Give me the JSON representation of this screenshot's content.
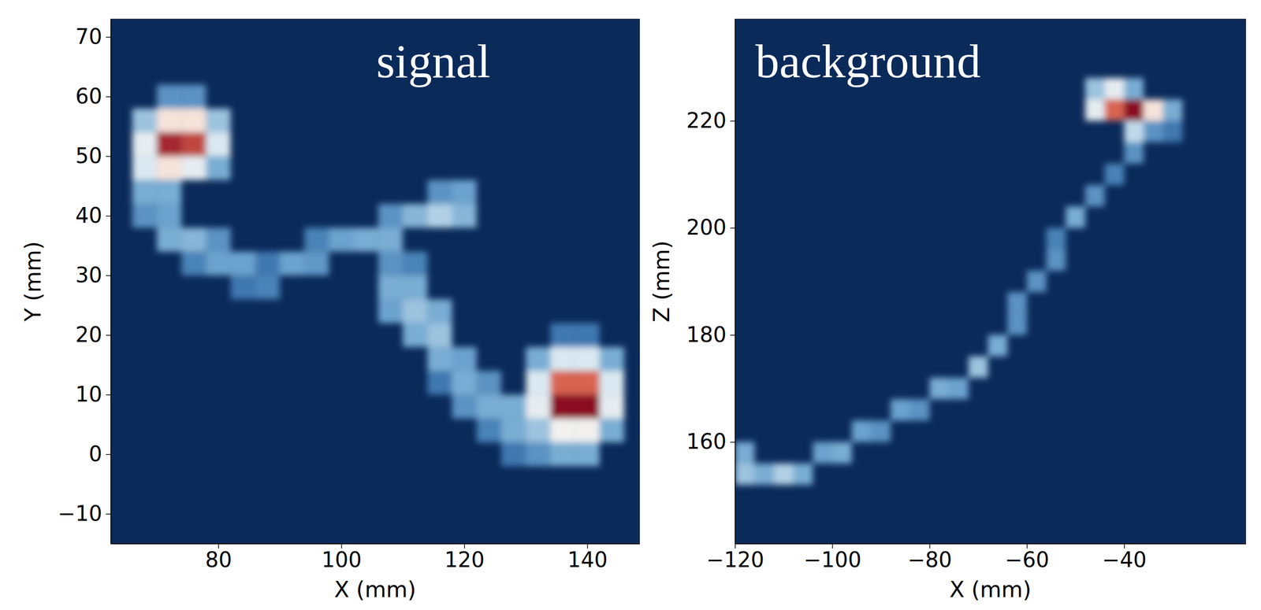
{
  "chart_data": [
    {
      "type": "heatmap",
      "title": "signal",
      "x_label": "X (mm)",
      "y_label": "Y (mm)",
      "xlim": [
        62.5,
        148.5
      ],
      "ylim": [
        -15,
        73
      ],
      "xticks": [
        80,
        100,
        120,
        140
      ],
      "yticks": [
        {
          "value": -10,
          "label": "−10"
        },
        0,
        10,
        20,
        30,
        40,
        50,
        60,
        70
      ],
      "cell_size": 4,
      "value_range": [
        0,
        1
      ],
      "cells": [
        [
          72,
          60,
          0.25
        ],
        [
          76,
          60,
          0.25
        ],
        [
          68,
          56,
          0.35
        ],
        [
          72,
          56,
          0.6
        ],
        [
          76,
          56,
          0.6
        ],
        [
          80,
          56,
          0.35
        ],
        [
          68,
          52,
          0.5
        ],
        [
          72,
          52,
          0.95
        ],
        [
          76,
          52,
          0.9
        ],
        [
          80,
          52,
          0.45
        ],
        [
          68,
          48,
          0.45
        ],
        [
          72,
          48,
          0.6
        ],
        [
          76,
          48,
          0.5
        ],
        [
          80,
          48,
          0.3
        ],
        [
          68,
          44,
          0.3
        ],
        [
          72,
          44,
          0.3
        ],
        [
          68,
          40,
          0.25
        ],
        [
          72,
          40,
          0.28
        ],
        [
          72,
          36,
          0.3
        ],
        [
          76,
          36,
          0.32
        ],
        [
          80,
          36,
          0.25
        ],
        [
          76,
          32,
          0.22
        ],
        [
          80,
          32,
          0.28
        ],
        [
          84,
          32,
          0.28
        ],
        [
          88,
          32,
          0.2
        ],
        [
          84,
          28,
          0.2
        ],
        [
          88,
          28,
          0.22
        ],
        [
          92,
          32,
          0.28
        ],
        [
          96,
          32,
          0.26
        ],
        [
          96,
          36,
          0.22
        ],
        [
          100,
          36,
          0.28
        ],
        [
          104,
          36,
          0.3
        ],
        [
          108,
          36,
          0.3
        ],
        [
          108,
          40,
          0.25
        ],
        [
          112,
          40,
          0.32
        ],
        [
          116,
          40,
          0.38
        ],
        [
          120,
          40,
          0.32
        ],
        [
          116,
          44,
          0.25
        ],
        [
          120,
          44,
          0.28
        ],
        [
          108,
          32,
          0.25
        ],
        [
          112,
          32,
          0.22
        ],
        [
          108,
          28,
          0.3
        ],
        [
          112,
          28,
          0.3
        ],
        [
          108,
          24,
          0.28
        ],
        [
          112,
          24,
          0.35
        ],
        [
          116,
          24,
          0.3
        ],
        [
          112,
          20,
          0.3
        ],
        [
          116,
          20,
          0.35
        ],
        [
          116,
          16,
          0.3
        ],
        [
          120,
          16,
          0.28
        ],
        [
          116,
          12,
          0.2
        ],
        [
          120,
          12,
          0.3
        ],
        [
          124,
          12,
          0.25
        ],
        [
          120,
          8,
          0.25
        ],
        [
          124,
          8,
          0.3
        ],
        [
          128,
          8,
          0.3
        ],
        [
          124,
          4,
          0.22
        ],
        [
          128,
          4,
          0.3
        ],
        [
          132,
          4,
          0.35
        ],
        [
          128,
          0,
          0.2
        ],
        [
          132,
          0,
          0.25
        ],
        [
          136,
          0,
          0.3
        ],
        [
          140,
          0,
          0.3
        ],
        [
          136,
          20,
          0.2
        ],
        [
          140,
          20,
          0.2
        ],
        [
          132,
          16,
          0.3
        ],
        [
          136,
          16,
          0.45
        ],
        [
          140,
          16,
          0.45
        ],
        [
          144,
          16,
          0.3
        ],
        [
          132,
          12,
          0.45
        ],
        [
          136,
          12,
          0.85
        ],
        [
          140,
          12,
          0.85
        ],
        [
          144,
          12,
          0.45
        ],
        [
          132,
          8,
          0.5
        ],
        [
          136,
          8,
          1.0
        ],
        [
          140,
          8,
          1.0
        ],
        [
          144,
          8,
          0.5
        ],
        [
          136,
          4,
          0.55
        ],
        [
          140,
          4,
          0.55
        ],
        [
          144,
          4,
          0.3
        ]
      ]
    },
    {
      "type": "heatmap",
      "title": "background",
      "x_label": "X (mm)",
      "y_label": "Z (mm)",
      "xlim": [
        -120,
        -15
      ],
      "ylim": [
        141,
        239
      ],
      "xticks": [
        {
          "value": -120,
          "label": "−120"
        },
        {
          "value": -100,
          "label": "−100"
        },
        {
          "value": -80,
          "label": "−80"
        },
        {
          "value": -60,
          "label": "−60"
        },
        {
          "value": -40,
          "label": "−40"
        }
      ],
      "yticks": [
        160,
        180,
        200,
        220
      ],
      "cell_size": 4,
      "value_range": [
        0,
        1
      ],
      "cells": [
        [
          -118,
          158,
          0.3
        ],
        [
          -118,
          154,
          0.35
        ],
        [
          -114,
          154,
          0.3
        ],
        [
          -110,
          154,
          0.38
        ],
        [
          -106,
          154,
          0.3
        ],
        [
          -102,
          158,
          0.28
        ],
        [
          -98,
          158,
          0.3
        ],
        [
          -94,
          162,
          0.28
        ],
        [
          -90,
          162,
          0.25
        ],
        [
          -86,
          166,
          0.28
        ],
        [
          -82,
          166,
          0.25
        ],
        [
          -78,
          170,
          0.3
        ],
        [
          -74,
          170,
          0.28
        ],
        [
          -70,
          174,
          0.35
        ],
        [
          -66,
          178,
          0.3
        ],
        [
          -62,
          182,
          0.25
        ],
        [
          -62,
          186,
          0.25
        ],
        [
          -58,
          190,
          0.25
        ],
        [
          -54,
          194,
          0.25
        ],
        [
          -54,
          198,
          0.22
        ],
        [
          -50,
          202,
          0.3
        ],
        [
          -46,
          206,
          0.25
        ],
        [
          -42,
          210,
          0.22
        ],
        [
          -38,
          214,
          0.25
        ],
        [
          -38,
          218,
          0.4
        ],
        [
          -34,
          218,
          0.25
        ],
        [
          -30,
          218,
          0.2
        ],
        [
          -46,
          226,
          0.35
        ],
        [
          -42,
          226,
          0.5
        ],
        [
          -38,
          226,
          0.3
        ],
        [
          -46,
          222,
          0.5
        ],
        [
          -42,
          222,
          0.85
        ],
        [
          -38,
          222,
          1.0
        ],
        [
          -34,
          222,
          0.6
        ],
        [
          -30,
          222,
          0.3
        ]
      ]
    }
  ]
}
